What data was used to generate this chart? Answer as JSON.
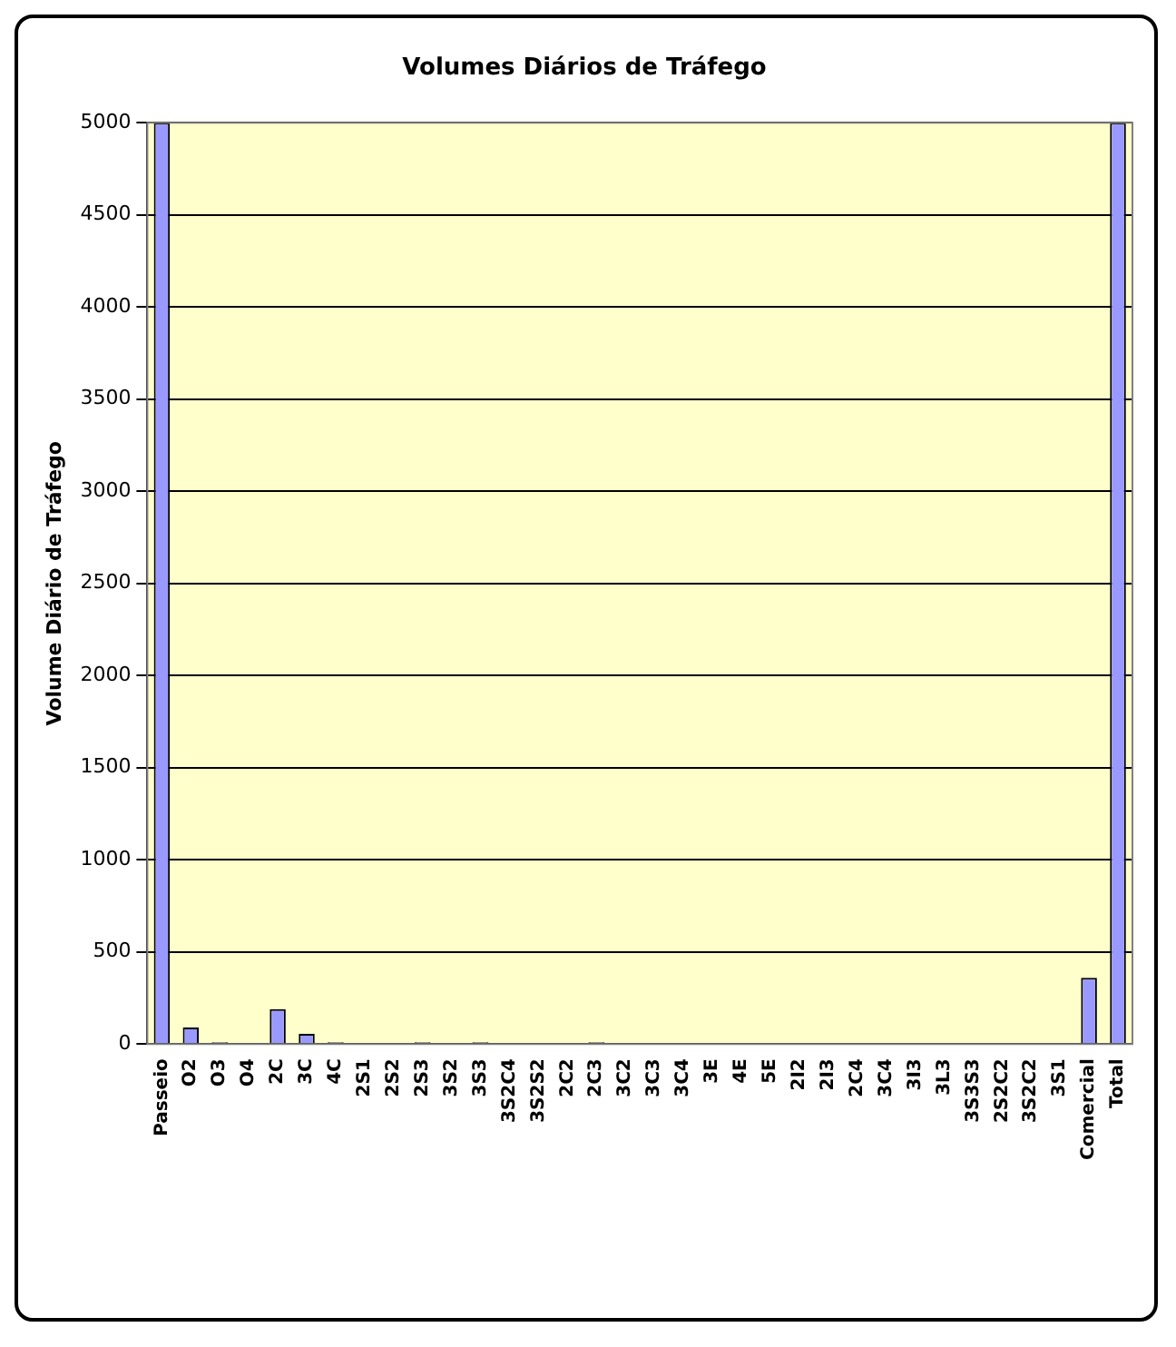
{
  "chart_data": {
    "type": "bar",
    "title": "Volumes Diários de Tráfego",
    "ylabel": "Volume Diário de Tráfego",
    "categories": [
      "Passeio",
      "O2",
      "O3",
      "O4",
      "2C",
      "3C",
      "4C",
      "2S1",
      "2S2",
      "2S3",
      "3S2",
      "3S3",
      "3S2C4",
      "3S2S2",
      "2C2",
      "2C3",
      "3C2",
      "3C3",
      "3C4",
      "3E",
      "4E",
      "5E",
      "2I2",
      "2I3",
      "2C4",
      "3C4",
      "3I3",
      "3L3",
      "3S3S3",
      "2S2C2",
      "3S2C2",
      "3S1",
      "Comercial",
      "Total"
    ],
    "values": [
      5000,
      90,
      10,
      0,
      190,
      55,
      10,
      0,
      0,
      10,
      0,
      10,
      0,
      0,
      0,
      10,
      0,
      0,
      0,
      0,
      0,
      0,
      0,
      0,
      0,
      0,
      0,
      0,
      0,
      0,
      0,
      0,
      360,
      5000
    ],
    "color": "#9999ff",
    "ylim": [
      0,
      5000
    ],
    "yticks": [
      0,
      500,
      1000,
      1500,
      2000,
      2500,
      3000,
      3500,
      4000,
      4500,
      5000
    ],
    "grid": "y"
  }
}
